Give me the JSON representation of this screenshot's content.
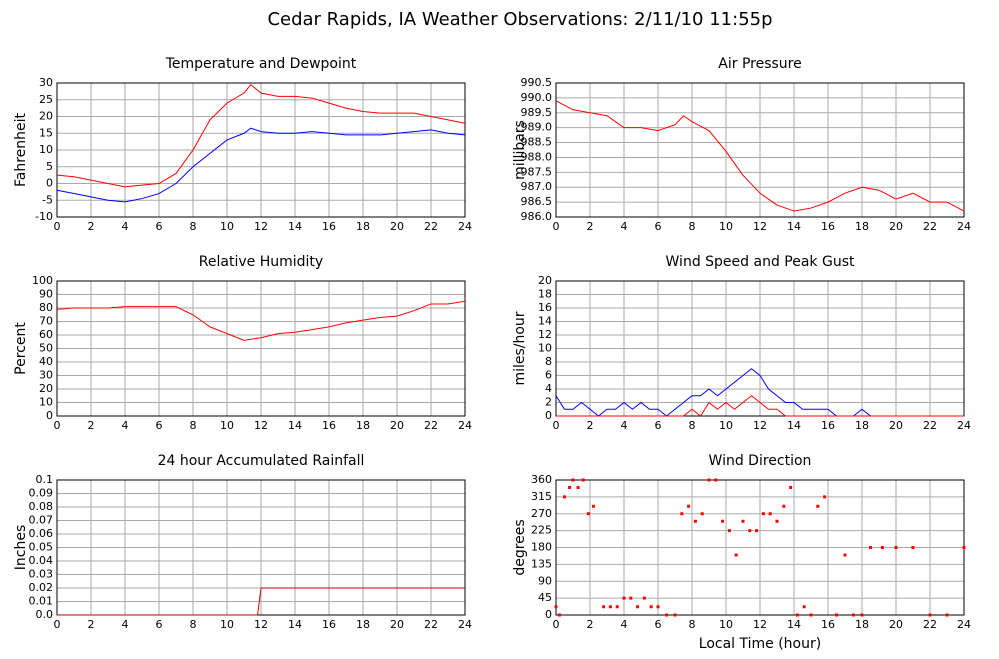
{
  "title": "Cedar Rapids, IA Weather Observations: 2/11/10 11:55p",
  "chart_data": [
    {
      "type": "line",
      "title": "Temperature and Dewpoint",
      "ylabel": "Fahrenheit",
      "x": [
        0,
        1,
        2,
        3,
        4,
        5,
        6,
        7,
        8,
        9,
        10,
        11,
        11.4,
        12,
        13,
        14,
        15,
        16,
        17,
        18,
        19,
        20,
        21,
        22,
        23,
        24
      ],
      "series": [
        {
          "color": "#ff0000",
          "values": [
            2.5,
            2,
            1,
            0,
            -1,
            -0.5,
            0,
            3,
            10,
            19,
            24,
            27,
            29.5,
            27,
            26,
            26,
            25.5,
            24,
            22.5,
            21.5,
            21,
            21,
            21,
            20,
            19,
            18
          ]
        },
        {
          "color": "#0000ff",
          "values": [
            -2,
            -3,
            -4,
            -5,
            -5.5,
            -4.5,
            -3,
            0,
            5,
            9,
            13,
            15,
            16.5,
            15.5,
            15,
            15,
            15.5,
            15,
            14.5,
            14.5,
            14.5,
            15,
            15.5,
            16,
            15,
            14.5
          ]
        }
      ],
      "xlim": [
        0,
        24
      ],
      "xticks": [
        0,
        2,
        4,
        6,
        8,
        10,
        12,
        14,
        16,
        18,
        20,
        22,
        24
      ],
      "ylim": [
        -10,
        30
      ],
      "yticks": [
        -10,
        -5,
        0,
        5,
        10,
        15,
        20,
        25,
        30
      ],
      "grid": true
    },
    {
      "type": "line",
      "title": "Air Pressure",
      "ylabel": "millibars",
      "x": [
        0,
        1,
        2,
        3,
        4,
        5,
        6,
        7,
        7.5,
        8,
        9,
        10,
        11,
        12,
        13,
        14,
        15,
        16,
        17,
        18,
        19,
        20,
        21,
        22,
        23,
        24
      ],
      "series": [
        {
          "color": "#ff0000",
          "values": [
            989.9,
            989.6,
            989.5,
            989.4,
            989.0,
            989.0,
            988.9,
            989.1,
            989.4,
            989.2,
            988.9,
            988.2,
            987.4,
            986.8,
            986.4,
            986.2,
            986.3,
            986.5,
            986.8,
            987.0,
            986.9,
            986.6,
            986.8,
            986.5,
            986.5,
            986.2
          ]
        }
      ],
      "xlim": [
        0,
        24
      ],
      "xticks": [
        0,
        2,
        4,
        6,
        8,
        10,
        12,
        14,
        16,
        18,
        20,
        22,
        24
      ],
      "ylim": [
        986,
        990.5
      ],
      "yticks": [
        {
          "value": 986,
          "label": "986.0"
        },
        986.5,
        {
          "value": 987,
          "label": "987.0"
        },
        987.5,
        {
          "value": 988,
          "label": "988.0"
        },
        988.5,
        {
          "value": 989,
          "label": "989.0"
        },
        989.5,
        {
          "value": 990,
          "label": "990.0"
        },
        990.5
      ],
      "grid": true
    },
    {
      "type": "line",
      "title": "Relative Humidity",
      "ylabel": "Percent",
      "x": [
        0,
        1,
        2,
        3,
        4,
        5,
        6,
        7,
        8,
        9,
        10,
        11,
        12,
        13,
        14,
        15,
        16,
        17,
        18,
        19,
        20,
        21,
        22,
        23,
        24
      ],
      "series": [
        {
          "color": "#ff0000",
          "values": [
            79,
            80,
            80,
            80,
            81,
            81,
            81,
            81,
            75,
            66,
            61,
            56,
            58,
            61,
            62,
            64,
            66,
            69,
            71,
            73,
            74,
            78,
            83,
            83,
            85
          ]
        }
      ],
      "xlim": [
        0,
        24
      ],
      "xticks": [
        0,
        2,
        4,
        6,
        8,
        10,
        12,
        14,
        16,
        18,
        20,
        22,
        24
      ],
      "ylim": [
        0,
        100
      ],
      "yticks": [
        0,
        10,
        20,
        30,
        40,
        50,
        60,
        70,
        80,
        90,
        100
      ],
      "grid": true
    },
    {
      "type": "line",
      "title": "Wind Speed and Peak Gust",
      "ylabel": "miles/hour",
      "x": [
        0,
        0.5,
        1,
        1.5,
        2,
        2.5,
        3,
        3.5,
        4,
        4.5,
        5,
        5.5,
        6,
        6.5,
        7,
        7.5,
        8,
        8.5,
        9,
        9.5,
        10,
        10.5,
        11,
        11.5,
        12,
        12.5,
        13,
        13.5,
        14,
        14.5,
        15,
        15.5,
        16,
        16.5,
        17,
        17.5,
        18,
        18.5,
        19,
        19.5,
        20,
        20.5,
        21,
        21.5,
        22,
        22.5,
        23,
        23.5,
        24
      ],
      "series": [
        {
          "color": "#0000ff",
          "values": [
            3,
            1,
            1,
            2,
            1,
            0,
            1,
            1,
            2,
            1,
            2,
            1,
            1,
            0,
            1,
            2,
            3,
            3,
            4,
            3,
            4,
            5,
            6,
            7,
            6,
            4,
            3,
            2,
            2,
            1,
            1,
            1,
            1,
            0,
            0,
            0,
            1,
            0,
            0,
            0,
            0,
            0,
            0,
            0,
            0,
            0,
            0,
            0,
            0
          ]
        },
        {
          "color": "#ff0000",
          "values": [
            0,
            0,
            0,
            0,
            0,
            0,
            0,
            0,
            0,
            0,
            0,
            0,
            0,
            0,
            0,
            0,
            1,
            0,
            2,
            1,
            2,
            1,
            2,
            3,
            2,
            1,
            1,
            0,
            0,
            0,
            0,
            0,
            0,
            0,
            0,
            0,
            0,
            0,
            0,
            0,
            0,
            0,
            0,
            0,
            0,
            0,
            0,
            0,
            0
          ]
        }
      ],
      "xlim": [
        0,
        24
      ],
      "xticks": [
        0,
        2,
        4,
        6,
        8,
        10,
        12,
        14,
        16,
        18,
        20,
        22,
        24
      ],
      "ylim": [
        0,
        20
      ],
      "yticks": [
        0,
        2,
        4,
        6,
        8,
        10,
        12,
        14,
        16,
        18,
        20
      ],
      "grid": true
    },
    {
      "type": "line",
      "title": "24 hour Accumulated Rainfall",
      "ylabel": "Inches",
      "x": [
        0,
        11.8,
        12,
        24
      ],
      "series": [
        {
          "color": "#cc0000",
          "values": [
            0,
            0,
            0.02,
            0.02
          ]
        }
      ],
      "xlim": [
        0,
        24
      ],
      "xticks": [
        0,
        2,
        4,
        6,
        8,
        10,
        12,
        14,
        16,
        18,
        20,
        22,
        24
      ],
      "ylim": [
        0,
        0.1
      ],
      "yticks": [
        {
          "value": 0,
          "label": "0.0"
        },
        0.01,
        0.02,
        0.03,
        0.04,
        0.05,
        0.06,
        0.07,
        0.08,
        0.09,
        0.1
      ],
      "grid": true
    },
    {
      "type": "scatter",
      "title": "Wind Direction",
      "ylabel": "degrees",
      "xlabel": "Local Time (hour)",
      "x": [
        0,
        0.2,
        0.5,
        0.8,
        1,
        1.3,
        1.6,
        1.9,
        2.2,
        2.8,
        3.2,
        3.6,
        4,
        4.4,
        4.8,
        5.2,
        5.6,
        6,
        6.5,
        7,
        7.4,
        7.8,
        8.2,
        8.6,
        9,
        9.4,
        9.8,
        10.2,
        10.6,
        11,
        11.4,
        11.8,
        12.2,
        12.6,
        13,
        13.4,
        13.8,
        14.2,
        14.6,
        15,
        15.4,
        15.8,
        16.5,
        17,
        17.5,
        18,
        18.5,
        19.2,
        20,
        21,
        22,
        23,
        24
      ],
      "values": [
        22,
        0,
        315,
        340,
        360,
        340,
        360,
        270,
        290,
        22,
        22,
        22,
        45,
        45,
        22,
        45,
        22,
        22,
        0,
        0,
        270,
        290,
        250,
        270,
        360,
        360,
        250,
        225,
        160,
        250,
        225,
        225,
        270,
        270,
        250,
        290,
        340,
        0,
        22,
        0,
        290,
        315,
        0,
        160,
        0,
        0,
        180,
        180,
        180,
        180,
        0,
        0,
        180
      ],
      "color": "#ff0000",
      "xlim": [
        0,
        24
      ],
      "xticks": [
        0,
        2,
        4,
        6,
        8,
        10,
        12,
        14,
        16,
        18,
        20,
        22,
        24
      ],
      "ylim": [
        0,
        360
      ],
      "yticks": [
        0,
        45,
        90,
        135,
        180,
        225,
        270,
        315,
        360
      ],
      "grid": true
    }
  ]
}
